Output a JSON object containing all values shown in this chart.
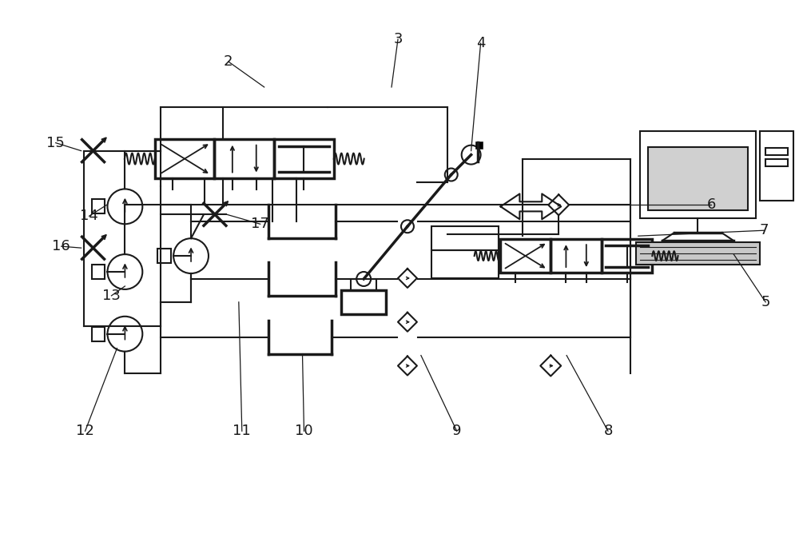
{
  "bg_color": "#ffffff",
  "line_color": "#1a1a1a",
  "lw": 1.5,
  "lw_thick": 2.5,
  "fig_w": 10.0,
  "fig_h": 6.88
}
